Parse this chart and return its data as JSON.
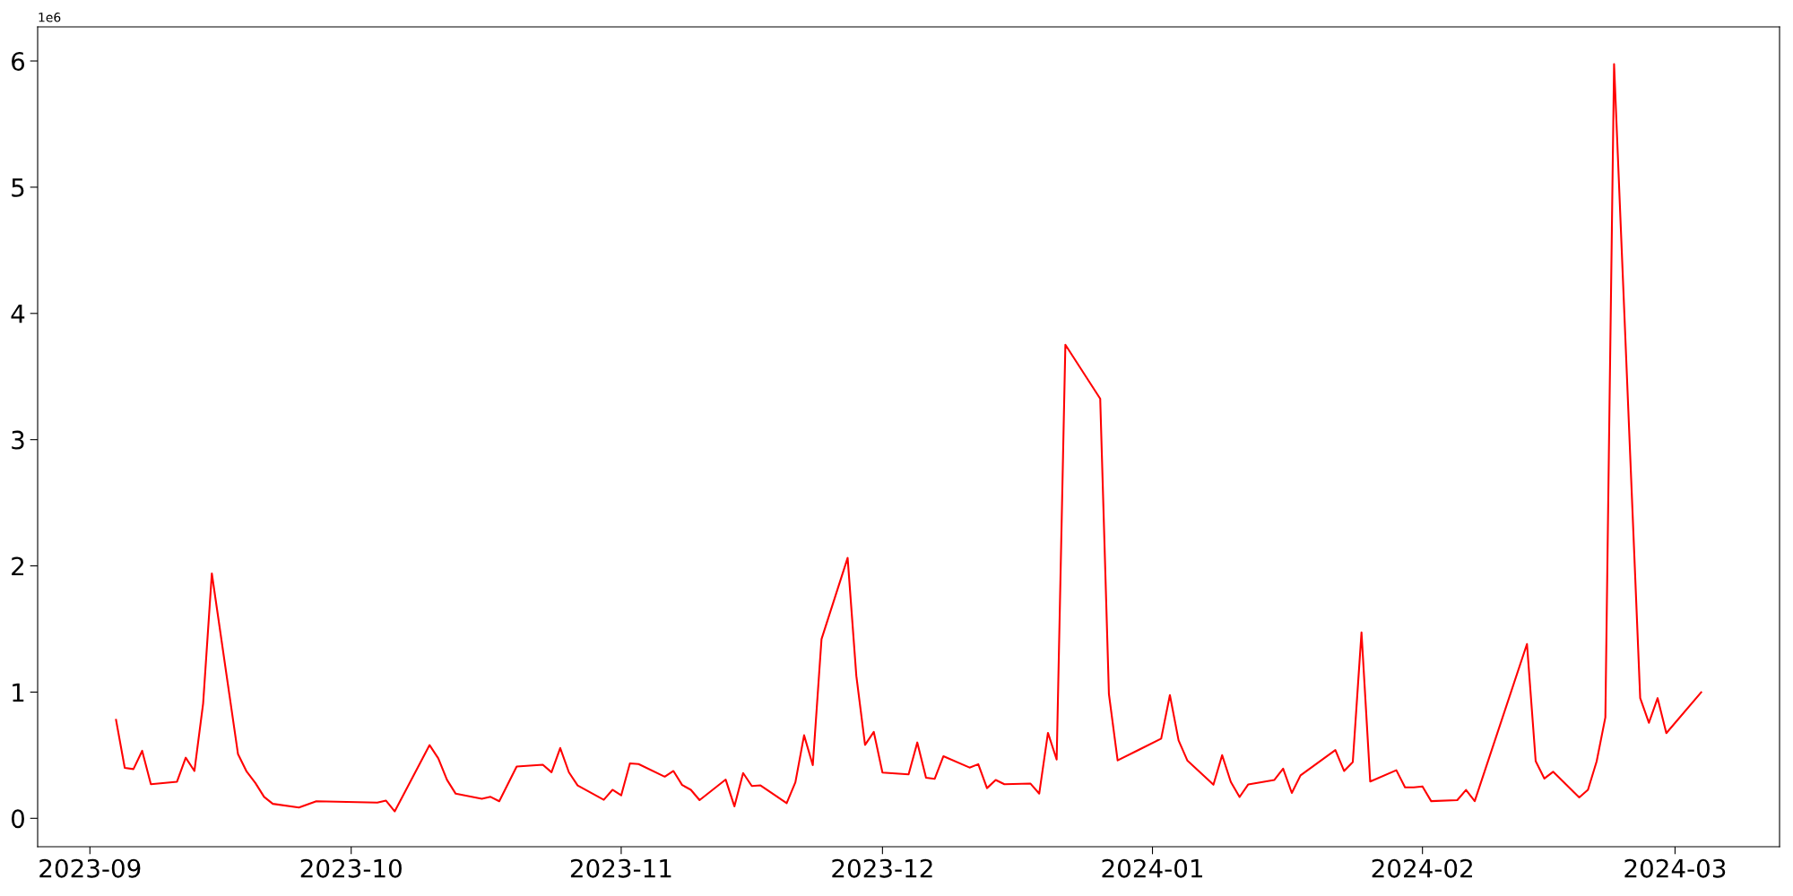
{
  "chart_data": {
    "type": "line",
    "annotations": [
      "1e6"
    ],
    "x": [
      "2023-09-04",
      "2023-09-05",
      "2023-09-06",
      "2023-09-07",
      "2023-09-08",
      "2023-09-11",
      "2023-09-12",
      "2023-09-13",
      "2023-09-14",
      "2023-09-15",
      "2023-09-18",
      "2023-09-19",
      "2023-09-20",
      "2023-09-21",
      "2023-09-22",
      "2023-09-25",
      "2023-09-27",
      "2023-10-04",
      "2023-10-05",
      "2023-10-06",
      "2023-10-10",
      "2023-10-11",
      "2023-10-12",
      "2023-10-13",
      "2023-10-16",
      "2023-10-17",
      "2023-10-18",
      "2023-10-20",
      "2023-10-23",
      "2023-10-24",
      "2023-10-25",
      "2023-10-26",
      "2023-10-27",
      "2023-10-30",
      "2023-10-31",
      "2023-11-01",
      "2023-11-02",
      "2023-11-03",
      "2023-11-06",
      "2023-11-07",
      "2023-11-08",
      "2023-11-09",
      "2023-11-10",
      "2023-11-13",
      "2023-11-14",
      "2023-11-15",
      "2023-11-16",
      "2023-11-17",
      "2023-11-20",
      "2023-11-21",
      "2023-11-22",
      "2023-11-23",
      "2023-11-24",
      "2023-11-27",
      "2023-11-28",
      "2023-11-29",
      "2023-11-30",
      "2023-12-01",
      "2023-12-04",
      "2023-12-05",
      "2023-12-06",
      "2023-12-07",
      "2023-12-08",
      "2023-12-11",
      "2023-12-12",
      "2023-12-13",
      "2023-12-14",
      "2023-12-15",
      "2023-12-18",
      "2023-12-19",
      "2023-12-20",
      "2023-12-21",
      "2023-12-22",
      "2023-12-26",
      "2023-12-27",
      "2023-12-28",
      "2024-01-02",
      "2024-01-03",
      "2024-01-04",
      "2024-01-05",
      "2024-01-08",
      "2024-01-09",
      "2024-01-10",
      "2024-01-11",
      "2024-01-12",
      "2024-01-15",
      "2024-01-16",
      "2024-01-17",
      "2024-01-18",
      "2024-01-22",
      "2024-01-23",
      "2024-01-24",
      "2024-01-25",
      "2024-01-26",
      "2024-01-29",
      "2024-01-30",
      "2024-01-31",
      "2024-02-01",
      "2024-02-02",
      "2024-02-05",
      "2024-02-06",
      "2024-02-07",
      "2024-02-13",
      "2024-02-14",
      "2024-02-15",
      "2024-02-16",
      "2024-02-19",
      "2024-02-20",
      "2024-02-21",
      "2024-02-22",
      "2024-02-23",
      "2024-02-26",
      "2024-02-27",
      "2024-02-28",
      "2024-02-29",
      "2024-03-04"
    ],
    "series": [
      {
        "color": "#ff0000",
        "values": [
          0.78,
          0.4,
          0.39,
          0.535,
          0.27,
          0.29,
          0.48,
          0.375,
          0.91,
          1.94,
          0.51,
          0.37,
          0.28,
          0.17,
          0.115,
          0.085,
          0.135,
          0.125,
          0.14,
          0.055,
          0.58,
          0.475,
          0.305,
          0.195,
          0.155,
          0.17,
          0.135,
          0.41,
          0.425,
          0.365,
          0.557,
          0.364,
          0.26,
          0.147,
          0.226,
          0.182,
          0.435,
          0.43,
          0.33,
          0.375,
          0.264,
          0.226,
          0.144,
          0.307,
          0.095,
          0.359,
          0.256,
          0.261,
          0.12,
          0.285,
          0.658,
          0.421,
          1.419,
          2.063,
          1.128,
          0.582,
          0.685,
          0.362,
          0.348,
          0.601,
          0.321,
          0.313,
          0.492,
          0.402,
          0.429,
          0.239,
          0.304,
          0.27,
          0.275,
          0.196,
          0.677,
          0.465,
          3.752,
          3.324,
          0.984,
          0.459,
          0.631,
          0.976,
          0.617,
          0.459,
          0.266,
          0.5,
          0.288,
          0.169,
          0.269,
          0.304,
          0.394,
          0.201,
          0.34,
          0.541,
          0.375,
          0.446,
          1.473,
          0.291,
          0.381,
          0.245,
          0.245,
          0.253,
          0.136,
          0.144,
          0.225,
          0.136,
          1.381,
          0.453,
          0.315,
          0.369,
          0.166,
          0.226,
          0.451,
          0.8,
          5.975,
          0.952,
          0.757,
          0.952,
          0.675,
          0.998
        ]
      }
    ],
    "xlim": [
      "2023-08-26",
      "2024-03-13"
    ],
    "xticks": [
      {
        "value": "2023-09-01",
        "label": "2023-09"
      },
      {
        "value": "2023-10-01",
        "label": "2023-10"
      },
      {
        "value": "2023-11-01",
        "label": "2023-11"
      },
      {
        "value": "2023-12-01",
        "label": "2023-12"
      },
      {
        "value": "2024-01-01",
        "label": "2024-01"
      },
      {
        "value": "2024-02-01",
        "label": "2024-02"
      },
      {
        "value": "2024-03-01",
        "label": "2024-03"
      }
    ],
    "ylim": [
      -0.225,
      6.27
    ],
    "yticks": [
      0,
      1,
      2,
      3,
      4,
      5,
      6
    ],
    "grid": false,
    "marker": "none",
    "line_style": "solid"
  }
}
